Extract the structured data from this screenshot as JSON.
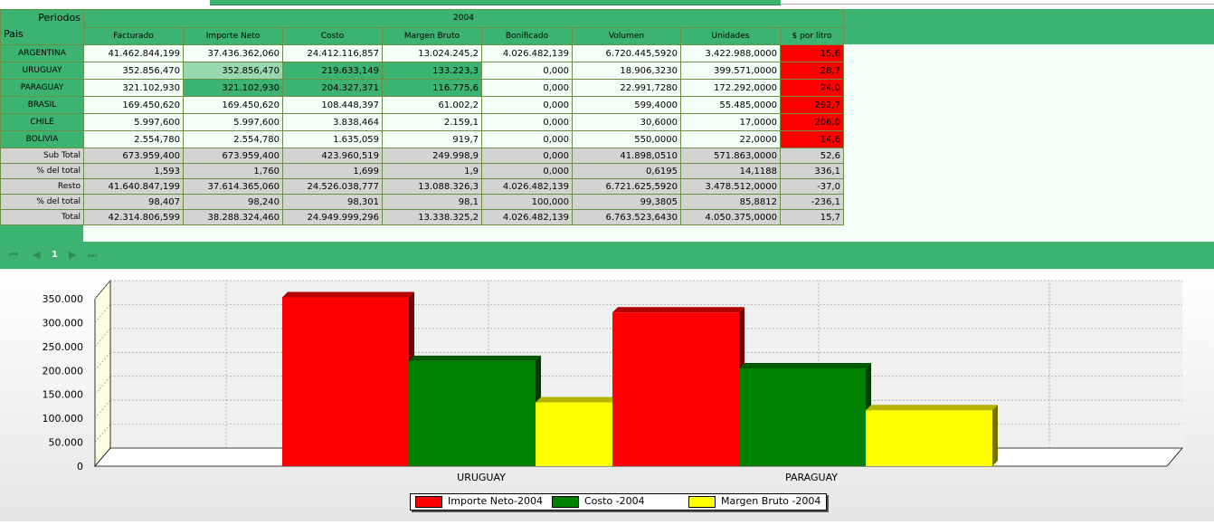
{
  "table": {
    "corner_periods": "Periodos",
    "corner_country": "Pais",
    "year": "2004",
    "columns": [
      "Facturado",
      "Importe Neto",
      "Costo",
      "Margen Bruto",
      "Bonificado",
      "Volumen",
      "Unidades",
      "$ por litro"
    ],
    "rows": [
      {
        "label": "ARGENTINA",
        "values": [
          "41.462.844,199",
          "37.436.362,060",
          "24.412.116,857",
          "13.024.245,2",
          "4.026.482,139",
          "6.720.445,5920",
          "3.422.988,0000",
          "15,6"
        ]
      },
      {
        "label": "URUGUAY",
        "values": [
          "352.856,470",
          "352.856,470",
          "219.633,149",
          "133.223,3",
          "0,000",
          "18.906,3230",
          "399.571,0000",
          "28,7"
        ]
      },
      {
        "label": "PARAGUAY",
        "values": [
          "321.102,930",
          "321.102,930",
          "204.327,371",
          "116.775,6",
          "0,000",
          "22.991,7280",
          "172.292,0000",
          "24,0"
        ]
      },
      {
        "label": "BRASIL",
        "values": [
          "169.450,620",
          "169.450,620",
          "108.448,397",
          "61.002,2",
          "0,000",
          "599,4000",
          "55.485,0000",
          "292,7"
        ]
      },
      {
        "label": "CHILE",
        "values": [
          "5.997,600",
          "5.997,600",
          "3.838,464",
          "2.159,1",
          "0,000",
          "30,6000",
          "17,0000",
          "206,0"
        ]
      },
      {
        "label": "BOLIVIA",
        "values": [
          "2.554,780",
          "2.554,780",
          "1.635,059",
          "919,7",
          "0,000",
          "550,0000",
          "22,0000",
          "14,6"
        ]
      }
    ],
    "summary": [
      {
        "label": "Sub Total",
        "values": [
          "673.959,400",
          "673.959,400",
          "423.960,519",
          "249.998,9",
          "0,000",
          "41.898,0510",
          "571.863,0000",
          "52,6"
        ]
      },
      {
        "label": "% del total",
        "values": [
          "1,593",
          "1,760",
          "1,699",
          "1,9",
          "0,000",
          "0,6195",
          "14,1188",
          "336,1"
        ]
      },
      {
        "label": "Resto",
        "values": [
          "41.640.847,199",
          "37.614.365,060",
          "24.526.038,777",
          "13.088.326,3",
          "4.026.482,139",
          "6.721.625,5920",
          "3.478.512,0000",
          "-37,0"
        ]
      },
      {
        "label": "% del total",
        "values": [
          "98,407",
          "98,240",
          "98,301",
          "98,1",
          "100,000",
          "99,3805",
          "85,8812",
          "-236,1"
        ]
      },
      {
        "label": "Total",
        "values": [
          "42.314.806,599",
          "38.288.324,460",
          "24.949.999,296",
          "13.338.325,2",
          "4.026.482,139",
          "6.763.523,6430",
          "4.050.375,0000",
          "15,7"
        ]
      }
    ],
    "colors": {
      "header_green": "#3cb371",
      "alert_red": "#ff0000",
      "summary_gray": "#d3d3d3"
    }
  },
  "pager": {
    "current_page": "1",
    "icons": [
      "first-page-icon",
      "prev-page-icon",
      "next-page-icon",
      "last-page-icon"
    ]
  },
  "chart_data": {
    "type": "bar",
    "categories": [
      "URUGUAY",
      "PARAGUAY"
    ],
    "series": [
      {
        "name": "Importe Neto-2004",
        "color": "#ff0000",
        "values": [
          352856.47,
          321102.93
        ]
      },
      {
        "name": "Costo -2004",
        "color": "#008000",
        "values": [
          219633.149,
          204327.371
        ]
      },
      {
        "name": "Margen Bruto -2004",
        "color": "#ffff00",
        "values": [
          133223.3,
          116775.6
        ]
      }
    ],
    "ylim": [
      0,
      350000
    ],
    "yticks": [
      "0",
      "50.000",
      "100.000",
      "150.000",
      "200.000",
      "250.000",
      "300.000",
      "350.000"
    ],
    "grid": true,
    "legend": "bottom"
  }
}
